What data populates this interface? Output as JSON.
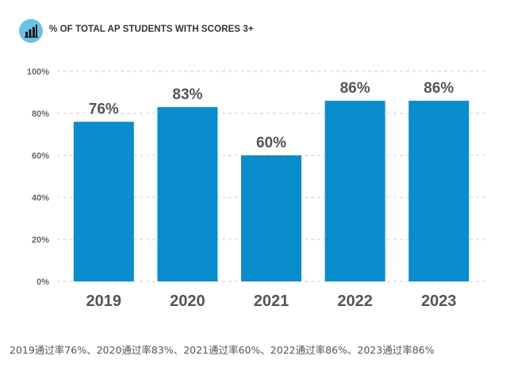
{
  "header": {
    "icon": "bar-chart-icon",
    "title": "% OF TOTAL AP STUDENTS WITH SCORES 3+"
  },
  "chart_data": {
    "type": "bar",
    "title": "% OF TOTAL AP STUDENTS WITH SCORES 3+",
    "categories": [
      "2019",
      "2020",
      "2021",
      "2022",
      "2023"
    ],
    "values": [
      76,
      83,
      60,
      86,
      86
    ],
    "data_labels": [
      "76%",
      "83%",
      "60%",
      "86%",
      "86%"
    ],
    "yticks": [
      "0%",
      "20%",
      "40%",
      "60%",
      "80%",
      "100%"
    ],
    "ylim": [
      0,
      100
    ],
    "grid": true,
    "xlabel": "",
    "ylabel": "",
    "colors": {
      "bar": "#0a8ccd",
      "grid": "#cccccc",
      "icon_bg": "#6ac1e6",
      "label": "#555555"
    }
  },
  "caption": "2019通过率76%、2020通过率83%、2021通过率60%、2022通过率86%、2023通过率86%"
}
